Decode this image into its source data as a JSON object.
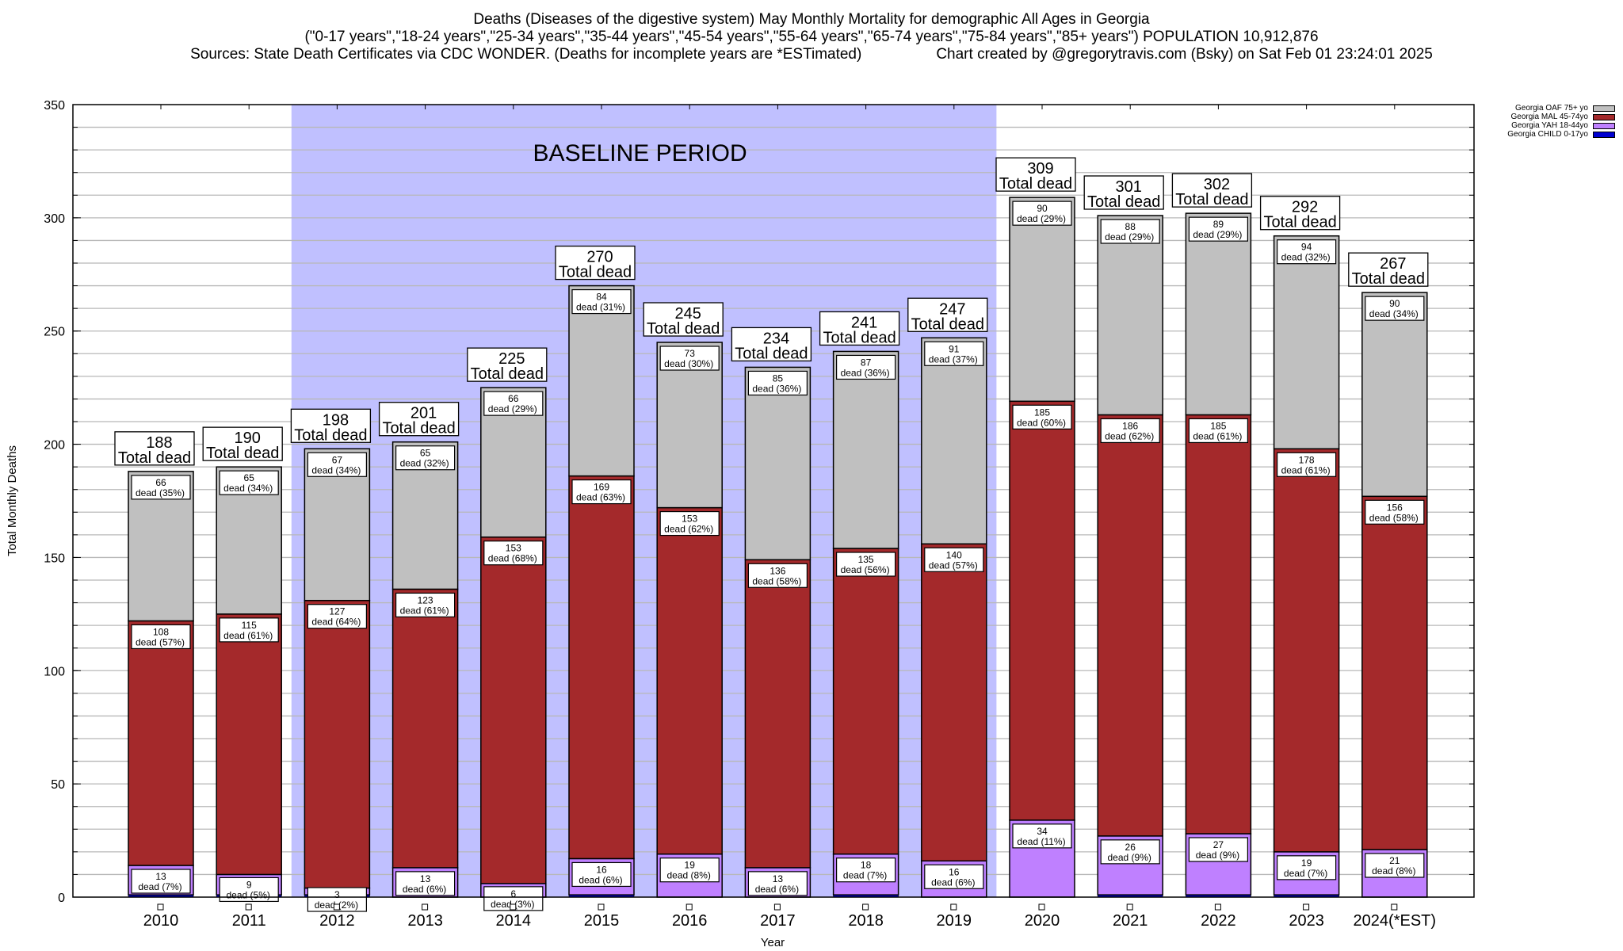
{
  "title": {
    "line1": "Deaths (Diseases of the digestive system) May Monthly Mortality for demographic All Ages in Georgia",
    "line2": "(\"0-17 years\",\"18-24 years\",\"25-34 years\",\"35-44 years\",\"45-54 years\",\"55-64 years\",\"65-74 years\",\"75-84 years\",\"85+ years\") POPULATION 10,912,876",
    "line3_left": "Sources: State Death Certificates via CDC WONDER. (Deaths for incomplete years are *ESTimated)",
    "line3_right": "Chart created by @gregorytravis.com (Bsky) on Sat Feb 01 23:24:01 2025"
  },
  "chart_data": {
    "type": "bar",
    "stacked": true,
    "xlabel": "Year",
    "ylabel": "Total Monthly Deaths",
    "ylim": [
      0,
      350
    ],
    "yticks": [
      0,
      50,
      100,
      150,
      200,
      250,
      300,
      350
    ],
    "minor_grid_step": 10,
    "grid": true,
    "legend_position": "top-right",
    "categories": [
      "2010",
      "2011",
      "2012",
      "2013",
      "2014",
      "2015",
      "2016",
      "2017",
      "2018",
      "2019",
      "2020",
      "2021",
      "2022",
      "2023",
      "2024(*EST)"
    ],
    "baseline": {
      "label": "BASELINE PERIOD",
      "from": "2012",
      "to": "2019",
      "color": "#c0c0ff"
    },
    "series": [
      {
        "name": "Georgia CHILD 0-17yo",
        "color": "#0000d0",
        "values": [
          1,
          1,
          1,
          0,
          0,
          1,
          0,
          0,
          1,
          0,
          0,
          1,
          1,
          1,
          0
        ]
      },
      {
        "name": "Georgia YAH 18-44yo",
        "color": "#bf80ff",
        "values": [
          13,
          9,
          3,
          13,
          6,
          16,
          19,
          13,
          18,
          16,
          34,
          26,
          27,
          19,
          21
        ],
        "labels": [
          "dead (7%)",
          "dead (5%)",
          "dead (2%)",
          "dead (6%)",
          "dead (3%)",
          "dead (6%)",
          "dead (8%)",
          "dead (6%)",
          "dead (7%)",
          "dead (6%)",
          "dead (11%)",
          "dead (9%)",
          "dead (9%)",
          "dead (7%)",
          "dead (8%)"
        ]
      },
      {
        "name": "Georgia MAL 45-74yo",
        "color": "#a4292b",
        "values": [
          108,
          115,
          127,
          123,
          153,
          169,
          153,
          136,
          135,
          140,
          185,
          186,
          185,
          178,
          156
        ],
        "labels": [
          "dead (57%)",
          "dead (61%)",
          "dead (64%)",
          "dead (61%)",
          "dead (68%)",
          "dead (63%)",
          "dead (62%)",
          "dead (58%)",
          "dead (56%)",
          "dead (57%)",
          "dead (60%)",
          "dead (62%)",
          "dead (61%)",
          "dead (61%)",
          "dead (58%)"
        ]
      },
      {
        "name": "Georgia OAF 75+ yo",
        "color": "#c0c0c0",
        "values": [
          66,
          65,
          67,
          65,
          66,
          84,
          73,
          85,
          87,
          91,
          90,
          88,
          89,
          94,
          90
        ],
        "labels": [
          "dead (35%)",
          "dead (34%)",
          "dead (34%)",
          "dead (32%)",
          "dead (29%)",
          "dead (31%)",
          "dead (30%)",
          "dead (36%)",
          "dead (36%)",
          "dead (37%)",
          "dead (29%)",
          "dead (29%)",
          "dead (29%)",
          "dead (32%)",
          "dead (34%)"
        ]
      }
    ],
    "totals": [
      188,
      190,
      198,
      201,
      225,
      270,
      245,
      234,
      241,
      247,
      309,
      301,
      302,
      292,
      267
    ],
    "total_suffix": "Total dead"
  }
}
